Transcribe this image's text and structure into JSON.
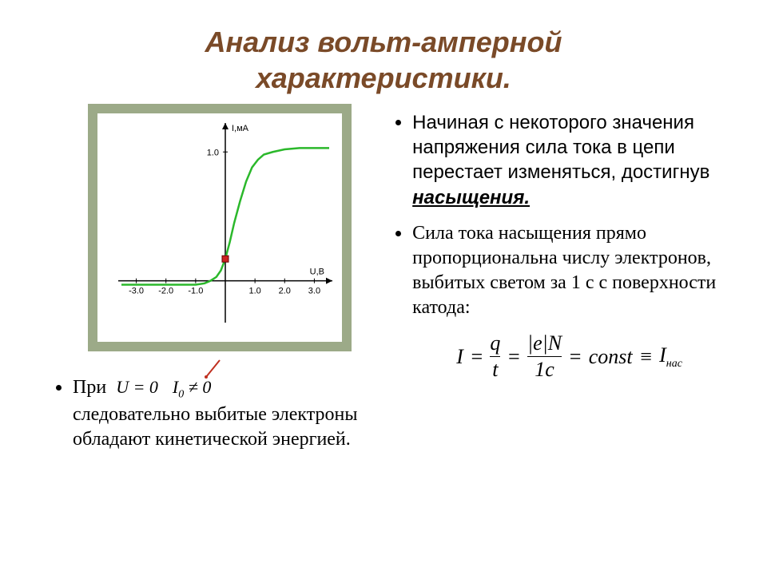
{
  "title_line1": "Анализ вольт-амперной",
  "title_line2": "характеристики.",
  "left_bullet": {
    "prefix": "При",
    "eq1": "U = 0",
    "eq2": "I",
    "eq2_sub": "0",
    "eq2_rel": "≠ 0",
    "rest": "следовательно выбитые электроны обладают кинетической энергией."
  },
  "right_bullet1": {
    "text_part1": "Начиная с некоторого значения напряжения сила тока в цепи перестает изменяться, достигнув ",
    "emph": "насыщения."
  },
  "right_bullet2": {
    "text": "Сила тока насыщения прямо пропорциональна числу электронов, выбитых светом за 1 с с поверхности катода:"
  },
  "formula": {
    "I": "I",
    "eq": "=",
    "q": "q",
    "t": "t",
    "eN": "|e|N",
    "den2": "1c",
    "const": "const",
    "equiv": "≡",
    "Inas": "I",
    "nas_sub": "нас"
  },
  "chart": {
    "type": "line",
    "background_color": "#9caa88",
    "inner_bg": "#ffffff",
    "axis_color": "#000000",
    "curve_color": "#2bb82b",
    "marker_color": "#cc2222",
    "grid_color": "#e5e5e5",
    "xlabel": "U,B",
    "ylabel": "I,мА",
    "xlim": [
      -3.5,
      3.5
    ],
    "ylim": [
      -0.3,
      1.2
    ],
    "xticks": [
      -3.0,
      -2.0,
      -1.0,
      1.0,
      2.0,
      3.0
    ],
    "yticks": [
      1.0
    ],
    "axis_label_fontsize": 11,
    "tick_fontsize": 11,
    "curve_points": [
      [
        -3.5,
        -0.03
      ],
      [
        -3.0,
        -0.03
      ],
      [
        -2.5,
        -0.03
      ],
      [
        -2.0,
        -0.03
      ],
      [
        -1.5,
        -0.03
      ],
      [
        -1.0,
        -0.03
      ],
      [
        -0.7,
        -0.02
      ],
      [
        -0.5,
        0.0
      ],
      [
        -0.3,
        0.03
      ],
      [
        -0.15,
        0.08
      ],
      [
        0.0,
        0.17
      ],
      [
        0.15,
        0.3
      ],
      [
        0.3,
        0.45
      ],
      [
        0.5,
        0.62
      ],
      [
        0.7,
        0.77
      ],
      [
        0.9,
        0.88
      ],
      [
        1.1,
        0.94
      ],
      [
        1.3,
        0.98
      ],
      [
        1.6,
        1.0
      ],
      [
        2.0,
        1.02
      ],
      [
        2.5,
        1.03
      ],
      [
        3.0,
        1.03
      ],
      [
        3.5,
        1.03
      ]
    ],
    "marker": [
      0.0,
      0.17
    ],
    "line_width": 2.5
  },
  "colors": {
    "title": "#7a4a28",
    "text": "#000000",
    "slide_bg": "#ffffff"
  }
}
